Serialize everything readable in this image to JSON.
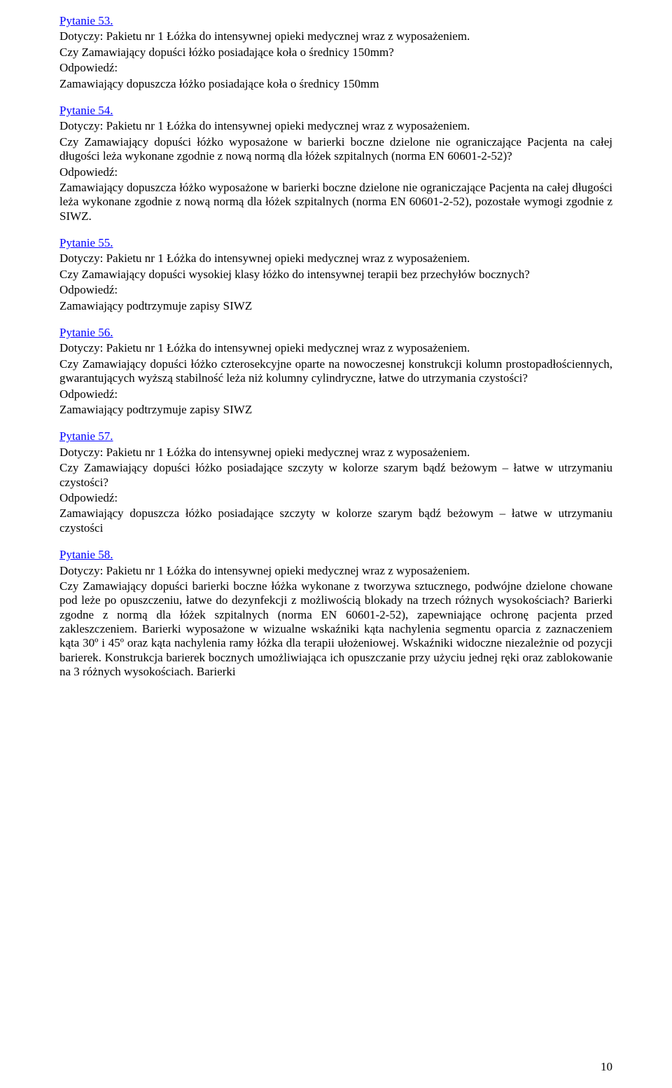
{
  "q53": {
    "label": "Pytanie 53.",
    "subject": "Dotyczy: Pakietu nr 1 Łóżka do intensywnej opieki medycznej wraz z wyposażeniem.",
    "question": "Czy Zamawiający dopuści łóżko posiadające koła o średnicy 150mm?",
    "answerLabel": "Odpowiedź:",
    "answer": "Zamawiający dopuszcza łóżko posiadające koła o średnicy 150mm"
  },
  "q54": {
    "label": "Pytanie 54.",
    "subject": "Dotyczy: Pakietu nr 1 Łóżka do intensywnej opieki medycznej wraz z wyposażeniem.",
    "question": "Czy Zamawiający dopuści łóżko wyposażone w barierki boczne dzielone nie ograniczające Pacjenta na całej długości leża wykonane zgodnie z nową normą dla łóżek szpitalnych (norma EN 60601-2-52)?",
    "answerLabel": "Odpowiedź:",
    "answer": "Zamawiający dopuszcza łóżko wyposażone w barierki boczne dzielone nie ograniczające Pacjenta na całej długości leża wykonane zgodnie z nową normą dla łóżek szpitalnych (norma EN 60601-2-52), pozostałe wymogi zgodnie z SIWZ."
  },
  "q55": {
    "label": "Pytanie 55.",
    "subject": "Dotyczy: Pakietu nr 1 Łóżka do intensywnej opieki medycznej wraz z wyposażeniem.",
    "question": "Czy Zamawiający dopuści wysokiej klasy łóżko do intensywnej terapii bez przechyłów bocznych?",
    "answerLabel": "Odpowiedź:",
    "answer": "Zamawiający podtrzymuje zapisy SIWZ"
  },
  "q56": {
    "label": "Pytanie 56.",
    "subject": "Dotyczy: Pakietu nr 1 Łóżka do intensywnej opieki medycznej wraz z wyposażeniem.",
    "question": "Czy Zamawiający dopuści łóżko czterosekcyjne oparte na nowoczesnej konstrukcji kolumn prostopadłościennych, gwarantujących wyższą stabilność leża niż kolumny cylindryczne, łatwe do utrzymania czystości?",
    "answerLabel": "Odpowiedź:",
    "answer": "Zamawiający podtrzymuje zapisy SIWZ"
  },
  "q57": {
    "label": "Pytanie 57.",
    "subject": "Dotyczy: Pakietu nr 1 Łóżka do intensywnej opieki medycznej wraz z wyposażeniem.",
    "question": "Czy Zamawiający dopuści łóżko posiadające szczyty w kolorze szarym bądź beżowym – łatwe w utrzymaniu czystości?",
    "answerLabel": "Odpowiedź:",
    "answer": "Zamawiający dopuszcza łóżko posiadające szczyty w kolorze szarym bądź beżowym – łatwe w utrzymaniu czystości"
  },
  "q58": {
    "label": "Pytanie 58.",
    "subject": "Dotyczy: Pakietu nr 1 Łóżka do intensywnej opieki medycznej wraz z wyposażeniem.",
    "question": "Czy Zamawiający dopuści barierki boczne łóżka wykonane z tworzywa sztucznego, podwójne dzielone chowane pod leże po opuszczeniu, łatwe do dezynfekcji z możliwością blokady na trzech różnych wysokościach? Barierki zgodne z normą dla łóżek szpitalnych (norma EN 60601-2-52), zapewniające ochronę pacjenta przed zakleszczeniem. Barierki wyposażone w wizualne wskaźniki kąta nachylenia segmentu oparcia z zaznaczeniem kąta 30º i 45º oraz  kąta nachylenia ramy łóżka dla terapii ułożeniowej. Wskaźniki widoczne niezależnie od pozycji barierek. Konstrukcja barierek bocznych umożliwiająca ich opuszczanie przy użyciu jednej ręki oraz zablokowanie na 3 różnych wysokościach. Barierki"
  },
  "pageNumber": "10"
}
